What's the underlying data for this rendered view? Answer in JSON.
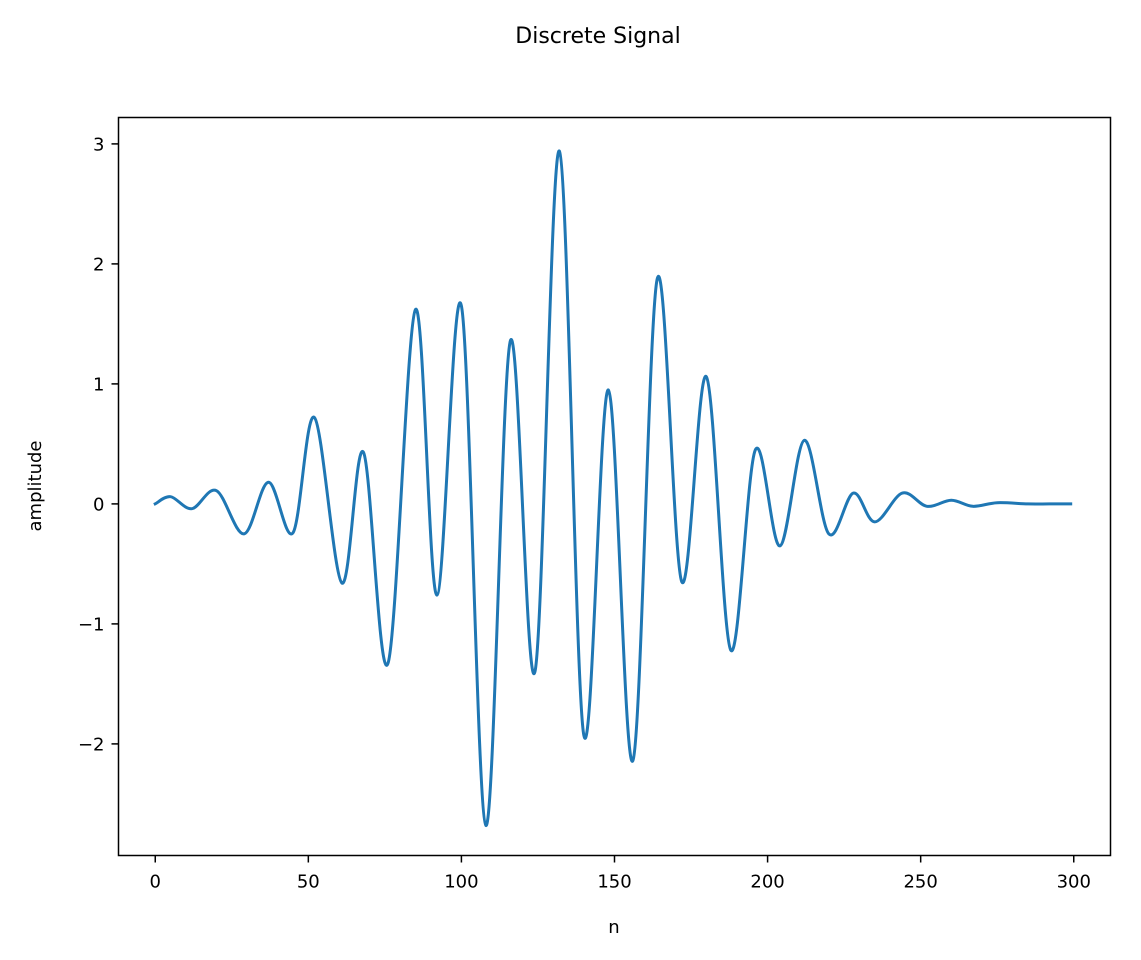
{
  "chart_data": {
    "type": "line",
    "title": "Discrete Signal",
    "xlabel": "n",
    "ylabel": "amplitude",
    "xlim": [
      -12,
      312
    ],
    "ylim": [
      -2.93,
      3.22
    ],
    "xticks": [
      0,
      50,
      100,
      150,
      200,
      250,
      300
    ],
    "xtick_labels": [
      "0",
      "50",
      "100",
      "150",
      "200",
      "250",
      "300"
    ],
    "yticks": [
      -2,
      -1,
      0,
      1,
      2,
      3
    ],
    "ytick_labels": [
      "−2",
      "−1",
      "0",
      "1",
      "2",
      "3"
    ],
    "grid": false,
    "legend": "none",
    "series": [
      {
        "color": "#1f77b4",
        "points": [
          [
            0,
            0.0
          ],
          [
            5,
            0.06
          ],
          [
            12,
            -0.04
          ],
          [
            20,
            0.11
          ],
          [
            29,
            -0.25
          ],
          [
            37,
            0.18
          ],
          [
            45,
            -0.24
          ],
          [
            52,
            0.72
          ],
          [
            61,
            -0.66
          ],
          [
            68,
            0.43
          ],
          [
            76,
            -1.33
          ],
          [
            85,
            1.62
          ],
          [
            92,
            -0.76
          ],
          [
            100,
            1.65
          ],
          [
            108,
            -2.68
          ],
          [
            116,
            1.36
          ],
          [
            124,
            -1.4
          ],
          [
            132,
            2.94
          ],
          [
            140,
            -1.93
          ],
          [
            148,
            0.95
          ],
          [
            156,
            -2.14
          ],
          [
            164,
            1.88
          ],
          [
            172,
            -0.65
          ],
          [
            180,
            1.06
          ],
          [
            188,
            -1.22
          ],
          [
            196,
            0.45
          ],
          [
            204,
            -0.35
          ],
          [
            212,
            0.53
          ],
          [
            220,
            -0.25
          ],
          [
            228,
            0.09
          ],
          [
            235,
            -0.15
          ],
          [
            244,
            0.09
          ],
          [
            252,
            -0.02
          ],
          [
            260,
            0.03
          ],
          [
            267,
            -0.02
          ],
          [
            275,
            0.01
          ],
          [
            285,
            0.0
          ],
          [
            292,
            0.0
          ],
          [
            299,
            0.0
          ]
        ]
      }
    ]
  }
}
